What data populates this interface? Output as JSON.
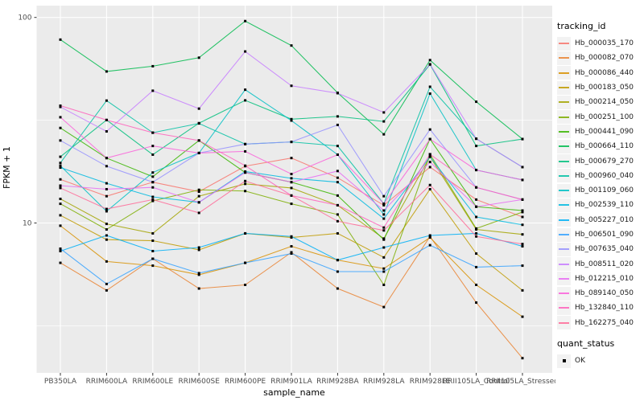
{
  "figure": {
    "background": "#FFFFFF",
    "panel_background": "#EBEBEB",
    "gridline_color": "#FFFFFF",
    "axis_text_color": "#4D4D4D",
    "point_color": "#000000"
  },
  "axes": {
    "y_title": "FPKM + 1",
    "x_title": "sample_name",
    "y_tick_labels": [
      "100",
      "10"
    ],
    "y_tick_values": [
      100,
      10
    ]
  },
  "legend": {
    "tracking_title": "tracking_id",
    "quant_title": "quant_status",
    "quant_value": "OK"
  },
  "chart_data": {
    "type": "line",
    "title": "",
    "xlabel": "sample_name",
    "ylabel": "FPKM + 1",
    "y_scale": "log10",
    "ylim": [
      1.9,
      113
    ],
    "y_major_gridlines": [
      10,
      100
    ],
    "y_minor_gridlines": [
      3.162,
      31.623
    ],
    "grid": true,
    "legend_position": "right",
    "point_shape": "filled-black-square",
    "categories": [
      "PB350LA",
      "RRIM600LA",
      "RRIM600LE",
      "RRIM600SE",
      "RRIM600PE",
      "RRIM901LA",
      "RRIM928BA",
      "RRIM928LA",
      "RRIM928LE",
      "RRII105LA_Control",
      "RRII105LA_Stressed"
    ],
    "series": [
      {
        "name": "Hb_000035_170",
        "color": "#F8766D",
        "values": [
          16.3,
          13.5,
          15.8,
          14.2,
          18.9,
          20.7,
          16.6,
          12.2,
          18.7,
          13.0,
          10.7
        ]
      },
      {
        "name": "Hb_000082_070",
        "color": "#EA8331",
        "values": [
          6.4,
          4.7,
          6.7,
          4.8,
          5.0,
          7.2,
          4.8,
          3.9,
          8.6,
          4.1,
          2.2
        ]
      },
      {
        "name": "Hb_000086_440",
        "color": "#D89000",
        "values": [
          9.7,
          6.5,
          6.2,
          5.6,
          6.4,
          7.7,
          6.6,
          6.0,
          8.5,
          5.0,
          3.5
        ]
      },
      {
        "name": "Hb_000183_050",
        "color": "#C09B00",
        "values": [
          10.9,
          8.3,
          8.2,
          7.4,
          8.9,
          8.5,
          8.9,
          6.8,
          14.6,
          7.1,
          4.7
        ]
      },
      {
        "name": "Hb_000214_050",
        "color": "#A3A500",
        "values": [
          13.1,
          9.9,
          8.9,
          13.5,
          15.5,
          14.8,
          12.2,
          8.4,
          21.0,
          9.3,
          8.8
        ]
      },
      {
        "name": "Hb_000251_100",
        "color": "#7CAE00",
        "values": [
          12.4,
          9.3,
          12.8,
          14.5,
          14.3,
          12.4,
          11.0,
          5.0,
          21.6,
          9.4,
          11.3
        ]
      },
      {
        "name": "Hb_000441_090",
        "color": "#39B600",
        "values": [
          29.0,
          20.7,
          16.8,
          25.2,
          17.6,
          15.8,
          13.6,
          8.3,
          25.6,
          12.0,
          11.5
        ]
      },
      {
        "name": "Hb_000664_110",
        "color": "#00BB4E",
        "values": [
          78.0,
          54.6,
          57.9,
          63.7,
          96.0,
          73.0,
          43.0,
          27.0,
          62.0,
          38.9,
          25.6
        ]
      },
      {
        "name": "Hb_000679_270",
        "color": "#00BF7D",
        "values": [
          21.0,
          31.7,
          21.5,
          30.6,
          39.5,
          32.0,
          33.0,
          31.2,
          59.0,
          23.7,
          25.6
        ]
      },
      {
        "name": "Hb_000960_040",
        "color": "#00C1A3",
        "values": [
          19.6,
          39.4,
          27.5,
          30.5,
          24.2,
          24.8,
          23.7,
          12.4,
          46.0,
          25.7,
          18.7
        ]
      },
      {
        "name": "Hb_001109_060",
        "color": "#00BFC4",
        "values": [
          19.0,
          11.4,
          17.6,
          21.9,
          44.5,
          31.5,
          21.5,
          11.0,
          42.6,
          18.1,
          16.2
        ]
      },
      {
        "name": "Hb_002539_110",
        "color": "#00BAE0",
        "values": [
          18.6,
          15.6,
          13.4,
          12.6,
          17.8,
          16.5,
          15.8,
          10.5,
          21.0,
          10.7,
          9.8
        ]
      },
      {
        "name": "Hb_005227_010",
        "color": "#00B0F6",
        "values": [
          7.3,
          8.7,
          7.3,
          7.6,
          8.9,
          8.6,
          6.6,
          7.6,
          8.7,
          8.9,
          7.7
        ]
      },
      {
        "name": "Hb_006501_090",
        "color": "#35A2FF",
        "values": [
          7.5,
          5.05,
          6.7,
          5.7,
          6.4,
          7.1,
          5.8,
          5.8,
          7.8,
          6.1,
          6.2
        ]
      },
      {
        "name": "Hb_007635_040",
        "color": "#9590FF",
        "values": [
          25.2,
          18.9,
          15.8,
          21.9,
          24.2,
          24.8,
          30.0,
          13.5,
          28.5,
          14.9,
          13.0
        ]
      },
      {
        "name": "Hb_008511_020",
        "color": "#C77CFF",
        "values": [
          36.7,
          27.9,
          44.0,
          36.0,
          68.3,
          46.5,
          42.8,
          34.5,
          59.2,
          25.7,
          18.7
        ]
      },
      {
        "name": "Hb_012215_010",
        "color": "#E76BF3",
        "values": [
          15.2,
          14.6,
          14.9,
          12.6,
          17.6,
          15.8,
          17.9,
          11.5,
          19.8,
          12.0,
          13.0
        ]
      },
      {
        "name": "Hb_089140_050",
        "color": "#FA62DB",
        "values": [
          32.7,
          20.7,
          23.7,
          21.9,
          22.3,
          17.3,
          21.5,
          12.4,
          25.6,
          18.1,
          16.2
        ]
      },
      {
        "name": "Hb_132840_110",
        "color": "#FF62BC",
        "values": [
          37.2,
          31.7,
          27.5,
          25.2,
          19.0,
          13.6,
          12.2,
          9.5,
          21.6,
          14.9,
          13.0
        ]
      },
      {
        "name": "Hb_162275_040",
        "color": "#FF6A98",
        "values": [
          14.8,
          11.7,
          13.0,
          11.2,
          16.0,
          13.6,
          10.2,
          9.2,
          15.3,
          8.6,
          7.9
        ]
      }
    ]
  }
}
